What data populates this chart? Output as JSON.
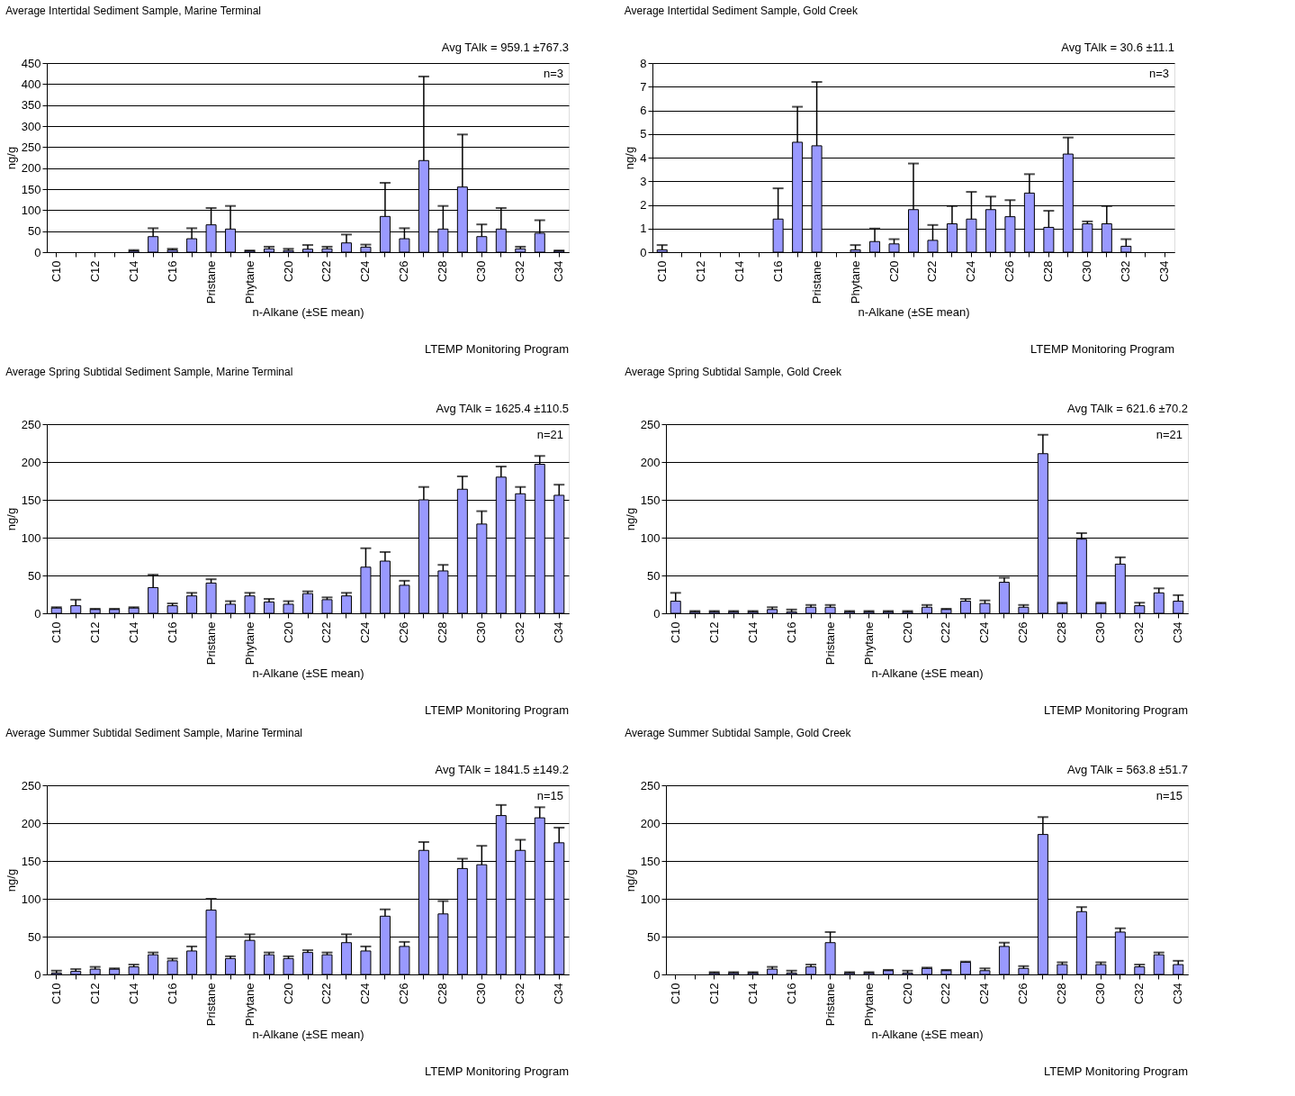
{
  "chart_data": [
    {
      "type": "bar",
      "title": "Average Intertidal Sediment Sample, Marine Terminal",
      "xlabel": "n-Alkane (±SE mean)",
      "ylabel": "ng/g",
      "categories": [
        "C10",
        null,
        "C12",
        null,
        "C14",
        null,
        "C16",
        null,
        "Pristane",
        null,
        "Phytane",
        null,
        "C20",
        null,
        "C22",
        null,
        "C24",
        null,
        "C26",
        null,
        "C28",
        null,
        "C30",
        null,
        "C32",
        null,
        "C34"
      ],
      "series": [
        {
          "color": "#9999ff",
          "values": [
            null,
            null,
            null,
            null,
            3,
            37,
            5,
            32,
            65,
            55,
            3,
            8,
            4,
            7,
            8,
            22,
            12,
            85,
            32,
            218,
            55,
            155,
            37,
            55,
            8,
            45,
            3
          ],
          "errors": [
            null,
            null,
            null,
            null,
            [
              3,
              5
            ],
            [
              37,
              57
            ],
            [
              5,
              8
            ],
            [
              32,
              57
            ],
            [
              65,
              105
            ],
            [
              55,
              110
            ],
            [
              3,
              4
            ],
            [
              8,
              13
            ],
            [
              4,
              8
            ],
            [
              7,
              17
            ],
            [
              8,
              13
            ],
            [
              22,
              42
            ],
            [
              12,
              18
            ],
            [
              85,
              165
            ],
            [
              32,
              57
            ],
            [
              218,
              418
            ],
            [
              55,
              110
            ],
            [
              155,
              280
            ],
            [
              37,
              66
            ],
            [
              55,
              105
            ],
            [
              8,
              13
            ],
            [
              45,
              76
            ],
            [
              3,
              4
            ]
          ]
        }
      ],
      "ylim": [
        0,
        450
      ],
      "yticks": [
        0,
        50,
        100,
        150,
        200,
        250,
        300,
        350,
        400,
        450
      ],
      "grid": "y",
      "annotations": [
        "Avg  TAlk = 959.1 ±767.3",
        "n=3",
        "LTEMP Monitoring Program"
      ]
    },
    {
      "type": "bar",
      "title": "Average Intertidal Sediment Sample, Gold Creek",
      "xlabel": "n-Alkane (±SE mean)",
      "ylabel": "ng/g",
      "categories": [
        "C10",
        null,
        "C12",
        null,
        "C14",
        null,
        "C16",
        null,
        "Pristane",
        null,
        "Phytane",
        null,
        "C20",
        null,
        "C22",
        null,
        "C24",
        null,
        "C26",
        null,
        "C28",
        null,
        "C30",
        null,
        "C32",
        null,
        "C34"
      ],
      "series": [
        {
          "color": "#9999ff",
          "values": [
            0.1,
            null,
            null,
            null,
            null,
            null,
            1.4,
            4.65,
            4.5,
            null,
            0.1,
            0.45,
            0.35,
            1.8,
            0.5,
            1.2,
            1.4,
            1.8,
            1.5,
            2.5,
            1.05,
            4.15,
            1.2,
            1.2,
            0.25,
            null,
            null
          ],
          "errors": [
            [
              0.1,
              0.3
            ],
            null,
            null,
            null,
            null,
            null,
            [
              1.4,
              2.7
            ],
            [
              4.65,
              6.15
            ],
            [
              4.5,
              7.2
            ],
            null,
            [
              0.1,
              0.3
            ],
            [
              0.45,
              1.0
            ],
            [
              0.35,
              0.55
            ],
            [
              1.8,
              3.75
            ],
            [
              0.5,
              1.15
            ],
            [
              1.2,
              1.95
            ],
            [
              1.4,
              2.55
            ],
            [
              1.8,
              2.35
            ],
            [
              1.5,
              2.2
            ],
            [
              2.5,
              3.3
            ],
            [
              1.05,
              1.75
            ],
            [
              4.15,
              4.85
            ],
            [
              1.2,
              1.3
            ],
            [
              1.2,
              1.95
            ],
            [
              0.25,
              0.55
            ],
            null,
            null
          ]
        }
      ],
      "ylim": [
        0,
        8
      ],
      "yticks": [
        0,
        1,
        2,
        3,
        4,
        5,
        6,
        7,
        8
      ],
      "grid": "y",
      "annotations": [
        "Avg  TAlk = 30.6 ±11.1",
        "n=3",
        "LTEMP Monitoring Program"
      ]
    },
    {
      "type": "bar",
      "title": "Average Spring Subtidal Sediment Sample, Marine Terminal",
      "xlabel": "n-Alkane (±SE mean)",
      "ylabel": "ng/g",
      "categories": [
        "C10",
        null,
        "C12",
        null,
        "C14",
        null,
        "C16",
        null,
        "Pristane",
        null,
        "Phytane",
        null,
        "C20",
        null,
        "C22",
        null,
        "C24",
        null,
        "C26",
        null,
        "C28",
        null,
        "C30",
        null,
        "C32",
        null,
        "C34"
      ],
      "series": [
        {
          "color": "#9999ff",
          "values": [
            7,
            10,
            5,
            5,
            7,
            34,
            10,
            23,
            40,
            12,
            23,
            15,
            12,
            26,
            18,
            23,
            61,
            69,
            37,
            150,
            56,
            164,
            118,
            180,
            158,
            197,
            156
          ],
          "errors": [
            [
              7,
              8
            ],
            [
              10,
              18
            ],
            [
              5,
              6
            ],
            [
              5,
              6
            ],
            [
              7,
              8
            ],
            [
              34,
              51
            ],
            [
              10,
              13
            ],
            [
              23,
              27
            ],
            [
              40,
              45
            ],
            [
              12,
              16
            ],
            [
              23,
              27
            ],
            [
              15,
              19
            ],
            [
              12,
              16
            ],
            [
              26,
              29
            ],
            [
              18,
              21
            ],
            [
              23,
              27
            ],
            [
              61,
              86
            ],
            [
              69,
              81
            ],
            [
              37,
              43
            ],
            [
              150,
              167
            ],
            [
              56,
              64
            ],
            [
              164,
              181
            ],
            [
              118,
              135
            ],
            [
              180,
              194
            ],
            [
              158,
              167
            ],
            [
              197,
              208
            ],
            [
              156,
              170
            ]
          ]
        }
      ],
      "ylim": [
        0,
        250
      ],
      "yticks": [
        0,
        50,
        100,
        150,
        200,
        250
      ],
      "grid": "y",
      "annotations": [
        "Avg  TAlk = 1625.4 ±110.5",
        "n=21",
        "LTEMP Monitoring Program"
      ]
    },
    {
      "type": "bar",
      "title": "Average Spring Subtidal Sample, Gold Creek",
      "xlabel": "n-Alkane (±SE mean)",
      "ylabel": "ng/g",
      "categories": [
        "C10",
        null,
        "C12",
        null,
        "C14",
        null,
        "C16",
        null,
        "Pristane",
        null,
        "Phytane",
        null,
        "C20",
        null,
        "C22",
        null,
        "C24",
        null,
        "C26",
        null,
        "C28",
        null,
        "C30",
        null,
        "C32",
        null,
        "C34"
      ],
      "series": [
        {
          "color": "#9999ff",
          "values": [
            16,
            2,
            2,
            2,
            2,
            5,
            2,
            8,
            8,
            2,
            2,
            2,
            2,
            8,
            5,
            16,
            13,
            41,
            8,
            211,
            13,
            98,
            13,
            65,
            10,
            27,
            16
          ],
          "errors": [
            [
              16,
              27
            ],
            [
              2,
              3
            ],
            [
              2,
              3
            ],
            [
              2,
              3
            ],
            [
              2,
              3
            ],
            [
              5,
              8
            ],
            [
              2,
              5
            ],
            [
              8,
              11
            ],
            [
              8,
              11
            ],
            [
              2,
              3
            ],
            [
              2,
              3
            ],
            [
              2,
              3
            ],
            [
              2,
              3
            ],
            [
              8,
              11
            ],
            [
              5,
              6
            ],
            [
              16,
              19
            ],
            [
              13,
              17
            ],
            [
              41,
              47
            ],
            [
              8,
              11
            ],
            [
              211,
              236
            ],
            [
              13,
              14
            ],
            [
              98,
              106
            ],
            [
              13,
              14
            ],
            [
              65,
              74
            ],
            [
              10,
              14
            ],
            [
              27,
              33
            ],
            [
              16,
              24
            ]
          ]
        }
      ],
      "ylim": [
        0,
        250
      ],
      "yticks": [
        0,
        50,
        100,
        150,
        200,
        250
      ],
      "grid": "y",
      "annotations": [
        "Avg  TAlk = 621.6 ±70.2",
        "n=21",
        "LTEMP Monitoring Program"
      ]
    },
    {
      "type": "bar",
      "title": "Average Summer Subtidal Sediment Sample, Marine Terminal",
      "xlabel": "n-Alkane (±SE mean)",
      "ylabel": "ng/g",
      "categories": [
        "C10",
        null,
        "C12",
        null,
        "C14",
        null,
        "C16",
        null,
        "Pristane",
        null,
        "Phytane",
        null,
        "C20",
        null,
        "C22",
        null,
        "C24",
        null,
        "C26",
        null,
        "C28",
        null,
        "C30",
        null,
        "C32",
        null,
        "C34"
      ],
      "series": [
        {
          "color": "#9999ff",
          "values": [
            2,
            4,
            7,
            7,
            10,
            26,
            18,
            31,
            85,
            21,
            45,
            26,
            21,
            29,
            26,
            42,
            31,
            77,
            37,
            164,
            80,
            140,
            145,
            210,
            164,
            207,
            174
          ],
          "errors": [
            [
              2,
              5
            ],
            [
              4,
              7
            ],
            [
              7,
              10
            ],
            [
              7,
              8
            ],
            [
              10,
              13
            ],
            [
              26,
              29
            ],
            [
              18,
              21
            ],
            [
              31,
              37
            ],
            [
              85,
              100
            ],
            [
              21,
              24
            ],
            [
              45,
              53
            ],
            [
              26,
              29
            ],
            [
              21,
              24
            ],
            [
              29,
              32
            ],
            [
              26,
              29
            ],
            [
              42,
              53
            ],
            [
              31,
              37
            ],
            [
              77,
              86
            ],
            [
              37,
              43
            ],
            [
              164,
              175
            ],
            [
              80,
              97
            ],
            [
              140,
              153
            ],
            [
              145,
              170
            ],
            [
              210,
              224
            ],
            [
              164,
              178
            ],
            [
              207,
              221
            ],
            [
              174,
              194
            ]
          ]
        }
      ],
      "ylim": [
        0,
        250
      ],
      "yticks": [
        0,
        50,
        100,
        150,
        200,
        250
      ],
      "grid": "y",
      "annotations": [
        "Avg  TAlk = 1841.5 ±149.2",
        "n=15",
        "LTEMP Monitoring Program"
      ]
    },
    {
      "type": "bar",
      "title": "Average Summer Subtidal Sample, Gold Creek",
      "xlabel": "n-Alkane (±SE mean)",
      "ylabel": "ng/g",
      "categories": [
        "C10",
        null,
        "C12",
        null,
        "C14",
        null,
        "C16",
        null,
        "Pristane",
        null,
        "Phytane",
        null,
        "C20",
        null,
        "C22",
        null,
        "C24",
        null,
        "C26",
        null,
        "C28",
        null,
        "C30",
        null,
        "C32",
        null,
        "C34"
      ],
      "series": [
        {
          "color": "#9999ff",
          "values": [
            null,
            null,
            2,
            2,
            2,
            7,
            2,
            10,
            42,
            2,
            2,
            5,
            2,
            8,
            5,
            16,
            5,
            37,
            8,
            185,
            13,
            83,
            13,
            56,
            10,
            26,
            13
          ],
          "errors": [
            null,
            null,
            [
              2,
              3
            ],
            [
              2,
              3
            ],
            [
              2,
              3
            ],
            [
              7,
              10
            ],
            [
              2,
              5
            ],
            [
              10,
              13
            ],
            [
              42,
              56
            ],
            [
              2,
              3
            ],
            [
              2,
              3
            ],
            [
              5,
              6
            ],
            [
              2,
              5
            ],
            [
              8,
              9
            ],
            [
              5,
              6
            ],
            [
              16,
              17
            ],
            [
              5,
              8
            ],
            [
              37,
              42
            ],
            [
              8,
              11
            ],
            [
              185,
              208
            ],
            [
              13,
              16
            ],
            [
              83,
              89
            ],
            [
              13,
              16
            ],
            [
              56,
              61
            ],
            [
              10,
              13
            ],
            [
              26,
              29
            ],
            [
              13,
              18
            ]
          ]
        }
      ],
      "ylim": [
        0,
        250
      ],
      "yticks": [
        0,
        50,
        100,
        150,
        200,
        250
      ],
      "grid": "y",
      "annotations": [
        "Avg  TAlk = 563.8 ±51.7",
        "n=15",
        "LTEMP Monitoring Program"
      ]
    }
  ]
}
